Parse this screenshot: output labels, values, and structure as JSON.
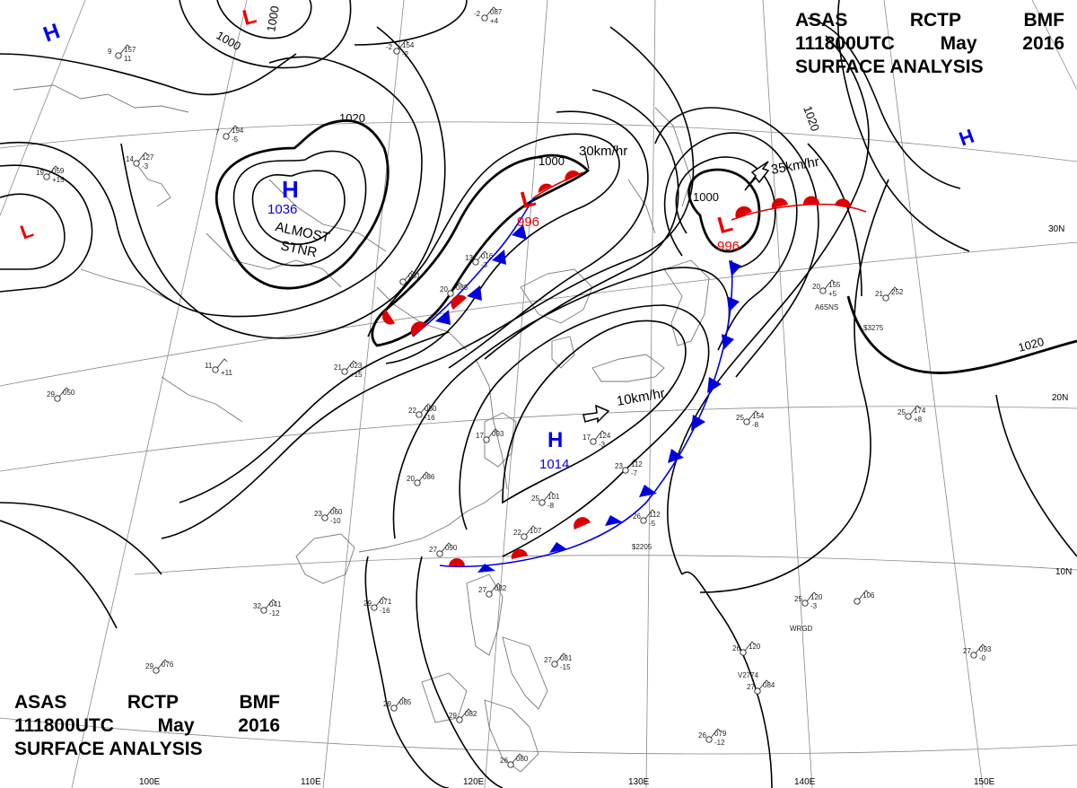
{
  "header": {
    "station": [
      "ASAS",
      "RCTP",
      "BMF"
    ],
    "datetime": [
      "111800UTC",
      "May",
      "2016"
    ],
    "title": "SURFACE ANALYSIS"
  },
  "lat_labels": [
    "30N",
    "20N",
    "10N"
  ],
  "lon_labels": [
    "100E",
    "110E",
    "120E",
    "130E",
    "140E",
    "150E"
  ],
  "isobar_labels": [
    "1000",
    "1000",
    "1020",
    "1000",
    "1000",
    "1020",
    "1020"
  ],
  "centers": [
    {
      "kind": "H",
      "pressure": "1036"
    },
    {
      "kind": "L",
      "pressure": "996"
    },
    {
      "kind": "L",
      "pressure": "996"
    },
    {
      "kind": "H",
      "pressure": "1014"
    },
    {
      "kind": "H",
      "pressure": ""
    },
    {
      "kind": "H",
      "pressure": ""
    },
    {
      "kind": "L",
      "pressure": ""
    },
    {
      "kind": "L",
      "pressure": ""
    }
  ],
  "annotations": [
    "ALMOST",
    "STNR"
  ],
  "motions": [
    "30km/hr",
    "35km/hr",
    "10km/hr"
  ],
  "colors": {
    "high": "#0000ee",
    "low": "#ee0000",
    "isobar": "#000000",
    "map": "#777777"
  },
  "stations": [
    {
      "t": "-2",
      "p": "087",
      "x": "+4"
    },
    {
      "t": "9",
      "p": "157",
      "x": "11"
    },
    {
      "t": "-2",
      "p": "154",
      "x": "-2"
    },
    {
      "t": "14",
      "p": "127",
      "x": "-3"
    },
    {
      "t": "7",
      "p": "194",
      "x": "-5"
    },
    {
      "t": "19",
      "p": "059",
      "x": "+15"
    },
    {
      "t": "13",
      "p": "016",
      "x": "-3"
    },
    {
      "t": "20",
      "p": "085",
      "x": ""
    },
    {
      "t": "29",
      "p": "050",
      "x": ""
    },
    {
      "t": "11",
      "p": "",
      "x": "+11"
    },
    {
      "t": "22",
      "p": "060",
      "x": "-16"
    },
    {
      "t": "23",
      "p": "060",
      "x": "-10"
    },
    {
      "t": "20",
      "p": "086",
      "x": ""
    },
    {
      "t": "32",
      "p": "041",
      "x": "-12"
    },
    {
      "t": "29",
      "p": "071",
      "x": "-16"
    },
    {
      "t": "29",
      "p": "076",
      "x": ""
    },
    {
      "t": "27",
      "p": "090",
      "x": ""
    },
    {
      "t": "26",
      "p": "112",
      "x": "-5"
    },
    {
      "t": "20",
      "p": "155",
      "x": "+5"
    },
    {
      "t": "21",
      "p": "252",
      "x": ""
    },
    {
      "t": "25",
      "p": "174",
      "x": "+8"
    },
    {
      "t": "25",
      "p": "154",
      "x": "-8"
    },
    {
      "t": "25",
      "p": "120",
      "x": "-3"
    },
    {
      "t": "26",
      "p": "120",
      "x": ""
    },
    {
      "t": "27",
      "p": "084",
      "x": ""
    },
    {
      "t": "27",
      "p": "093",
      "x": "-0"
    },
    {
      "t": "26",
      "p": "079",
      "x": "-12"
    },
    {
      "t": "27",
      "p": "082",
      "x": ""
    },
    {
      "t": "29",
      "p": "082",
      "x": ""
    },
    {
      "t": "26",
      "p": "080",
      "x": ""
    },
    {
      "t": "27",
      "p": "081",
      "x": "-15"
    },
    {
      "t": "29",
      "p": "085",
      "x": ""
    },
    {
      "t": "25",
      "p": "101",
      "x": "-8"
    },
    {
      "t": "22",
      "p": "107",
      "x": ""
    },
    {
      "t": "17",
      "p": "093",
      "x": ""
    },
    {
      "t": "21",
      "p": "023",
      "x": "+15"
    },
    {
      "t": "17",
      "p": "124",
      "x": "-3"
    },
    {
      "t": "23",
      "p": "112",
      "x": "-7"
    },
    {
      "t": "",
      "p": "106",
      "x": ""
    },
    {
      "t": "",
      "p": "081",
      "x": ""
    }
  ],
  "station_codes": [
    "WRGD",
    "V2774",
    "$2205",
    "A6SNS",
    "$3275"
  ]
}
